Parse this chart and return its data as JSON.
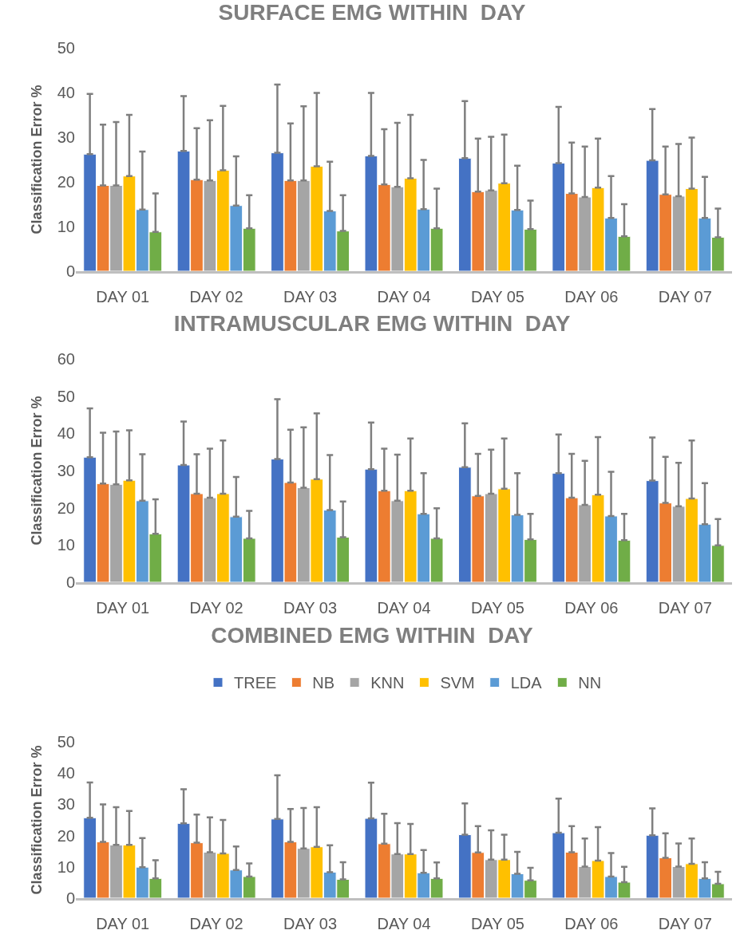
{
  "chart_data": [
    {
      "type": "bar",
      "title": "SURFACE EMG WITHIN  DAY",
      "ylabel": "Classification Error %",
      "categories": [
        "DAY 01",
        "DAY 02",
        "DAY 03",
        "DAY 04",
        "DAY 05",
        "DAY 06",
        "DAY 07"
      ],
      "ylim": [
        0,
        50
      ],
      "yticks": [
        0,
        10,
        20,
        30,
        40,
        50
      ],
      "grid": false,
      "legend": false,
      "series": [
        {
          "color": "#4472c4",
          "values": [
            26.2,
            26.9,
            26.5,
            25.8,
            25.3,
            24.2,
            24.8
          ],
          "errors": [
            [
              26.2,
              39.7
            ],
            [
              26.9,
              39.2
            ],
            [
              26.5,
              41.8
            ],
            [
              25.8,
              39.9
            ],
            [
              25.3,
              38.1
            ],
            [
              24.2,
              36.8
            ],
            [
              24.8,
              36.3
            ]
          ]
        },
        {
          "color": "#ed7d31",
          "values": [
            19.2,
            20.5,
            20.3,
            19.4,
            17.8,
            17.4,
            17.2
          ],
          "errors": [
            [
              19.2,
              32.8
            ],
            [
              20.5,
              32.0
            ],
            [
              20.3,
              33.1
            ],
            [
              19.4,
              31.8
            ],
            [
              17.8,
              29.7
            ],
            [
              17.4,
              28.8
            ],
            [
              17.2,
              27.9
            ]
          ]
        },
        {
          "color": "#a5a5a5",
          "values": [
            19.2,
            20.3,
            20.3,
            18.9,
            18.1,
            16.6,
            16.8
          ],
          "errors": [
            [
              19.2,
              33.4
            ],
            [
              20.3,
              33.8
            ],
            [
              20.3,
              36.9
            ],
            [
              18.9,
              33.2
            ],
            [
              18.1,
              30.1
            ],
            [
              16.6,
              27.9
            ],
            [
              16.8,
              28.5
            ]
          ]
        },
        {
          "color": "#ffc000",
          "values": [
            21.3,
            22.6,
            23.5,
            20.8,
            19.7,
            18.7,
            18.5
          ],
          "errors": [
            [
              21.3,
              35.0
            ],
            [
              22.6,
              37.0
            ],
            [
              23.5,
              39.9
            ],
            [
              20.8,
              35.0
            ],
            [
              19.7,
              30.6
            ],
            [
              18.7,
              29.7
            ],
            [
              18.5,
              29.9
            ]
          ]
        },
        {
          "color": "#5b9bd5",
          "values": [
            13.8,
            14.7,
            13.5,
            13.9,
            13.7,
            11.9,
            11.9
          ],
          "errors": [
            [
              13.8,
              26.8
            ],
            [
              14.7,
              25.7
            ],
            [
              13.5,
              24.5
            ],
            [
              13.9,
              24.9
            ],
            [
              13.7,
              23.6
            ],
            [
              11.9,
              21.3
            ],
            [
              11.9,
              21.1
            ]
          ]
        },
        {
          "color": "#70ad47",
          "values": [
            8.8,
            9.6,
            9.0,
            9.6,
            9.4,
            7.8,
            7.6
          ],
          "errors": [
            [
              8.8,
              17.4
            ],
            [
              9.6,
              17.0
            ],
            [
              9.0,
              17.0
            ],
            [
              9.6,
              18.5
            ],
            [
              9.4,
              15.8
            ],
            [
              7.8,
              15.0
            ],
            [
              7.6,
              14.0
            ]
          ]
        }
      ]
    },
    {
      "type": "bar",
      "title": "INTRAMUSCULAR EMG WITHIN  DAY",
      "ylabel": "Classification Error %",
      "categories": [
        "DAY 01",
        "DAY 02",
        "DAY 03",
        "DAY 04",
        "DAY 05",
        "DAY 06",
        "DAY 07"
      ],
      "ylim": [
        0,
        60
      ],
      "yticks": [
        0,
        10,
        20,
        30,
        40,
        50,
        60
      ],
      "grid": false,
      "legend": false,
      "series": [
        {
          "color": "#4472c4",
          "values": [
            33.6,
            31.5,
            33.1,
            30.4,
            30.9,
            29.3,
            27.3
          ],
          "errors": [
            [
              33.6,
              46.7
            ],
            [
              31.5,
              43.2
            ],
            [
              33.1,
              49.2
            ],
            [
              30.4,
              42.9
            ],
            [
              30.9,
              42.7
            ],
            [
              29.3,
              39.7
            ],
            [
              27.3,
              38.9
            ]
          ]
        },
        {
          "color": "#ed7d31",
          "values": [
            26.5,
            23.8,
            26.8,
            24.6,
            23.2,
            22.7,
            21.3
          ],
          "errors": [
            [
              26.5,
              40.2
            ],
            [
              23.8,
              34.4
            ],
            [
              26.8,
              41.0
            ],
            [
              24.6,
              35.9
            ],
            [
              23.2,
              34.5
            ],
            [
              22.7,
              34.5
            ],
            [
              21.3,
              33.7
            ]
          ]
        },
        {
          "color": "#a5a5a5",
          "values": [
            26.3,
            22.7,
            25.4,
            21.9,
            23.8,
            20.8,
            20.4
          ],
          "errors": [
            [
              26.3,
              40.5
            ],
            [
              22.7,
              35.9
            ],
            [
              25.4,
              41.6
            ],
            [
              21.9,
              34.3
            ],
            [
              23.8,
              35.6
            ],
            [
              20.8,
              32.6
            ],
            [
              20.4,
              32.1
            ]
          ]
        },
        {
          "color": "#ffc000",
          "values": [
            27.4,
            23.8,
            27.7,
            24.6,
            25.1,
            23.5,
            22.5
          ],
          "errors": [
            [
              27.4,
              40.8
            ],
            [
              23.8,
              38.1
            ],
            [
              27.7,
              45.4
            ],
            [
              24.6,
              38.6
            ],
            [
              25.1,
              38.6
            ],
            [
              23.5,
              39.0
            ],
            [
              22.5,
              38.1
            ]
          ]
        },
        {
          "color": "#5b9bd5",
          "values": [
            21.9,
            17.6,
            19.4,
            18.4,
            18.1,
            17.8,
            15.6
          ],
          "errors": [
            [
              21.9,
              34.4
            ],
            [
              17.6,
              28.3
            ],
            [
              19.4,
              34.2
            ],
            [
              18.4,
              29.3
            ],
            [
              18.1,
              29.3
            ],
            [
              17.8,
              29.7
            ],
            [
              15.6,
              26.6
            ]
          ]
        },
        {
          "color": "#70ad47",
          "values": [
            13.0,
            11.8,
            12.1,
            11.8,
            11.5,
            11.3,
            9.9
          ],
          "errors": [
            [
              13.0,
              22.3
            ],
            [
              11.8,
              19.2
            ],
            [
              12.1,
              21.7
            ],
            [
              11.8,
              19.9
            ],
            [
              11.5,
              18.4
            ],
            [
              11.3,
              18.4
            ],
            [
              9.9,
              17.0
            ]
          ]
        }
      ]
    },
    {
      "type": "bar",
      "title": "COMBINED EMG WITHIN  DAY",
      "ylabel": "Classification Error %",
      "categories": [
        "DAY 01",
        "DAY 02",
        "DAY 03",
        "DAY 04",
        "DAY 05",
        "DAY 06",
        "DAY 07"
      ],
      "ylim": [
        0,
        50
      ],
      "yticks": [
        0,
        10,
        20,
        30,
        40,
        50
      ],
      "grid": false,
      "legend": "top",
      "series": [
        {
          "name": "TREE",
          "color": "#4472c4",
          "values": [
            25.7,
            23.9,
            25.3,
            25.5,
            20.3,
            20.9,
            20.1
          ],
          "errors": [
            [
              25.7,
              37.0
            ],
            [
              23.9,
              34.8
            ],
            [
              25.3,
              39.3
            ],
            [
              25.5,
              36.9
            ],
            [
              20.3,
              30.3
            ],
            [
              20.9,
              31.8
            ],
            [
              20.1,
              28.7
            ]
          ]
        },
        {
          "name": "NB",
          "color": "#ed7d31",
          "values": [
            18.0,
            17.7,
            18.0,
            17.4,
            14.6,
            14.7,
            12.9
          ],
          "errors": [
            [
              18.0,
              30.0
            ],
            [
              17.7,
              26.7
            ],
            [
              18.0,
              28.5
            ],
            [
              17.4,
              27.0
            ],
            [
              14.6,
              23.0
            ],
            [
              14.7,
              23.0
            ],
            [
              12.9,
              20.7
            ]
          ]
        },
        {
          "name": "KNN",
          "color": "#a5a5a5",
          "values": [
            17.0,
            14.7,
            15.9,
            14.1,
            12.3,
            10.1,
            10.1
          ],
          "errors": [
            [
              17.0,
              29.1
            ],
            [
              14.7,
              25.8
            ],
            [
              15.9,
              28.8
            ],
            [
              14.1,
              24.0
            ],
            [
              12.3,
              21.7
            ],
            [
              10.1,
              19.1
            ],
            [
              10.1,
              17.5
            ]
          ]
        },
        {
          "name": "SVM",
          "color": "#ffc000",
          "values": [
            17.0,
            14.3,
            16.4,
            14.1,
            12.3,
            12.0,
            11.0
          ],
          "errors": [
            [
              17.0,
              27.9
            ],
            [
              14.3,
              25.0
            ],
            [
              16.4,
              29.1
            ],
            [
              14.1,
              23.7
            ],
            [
              12.3,
              20.3
            ],
            [
              12.0,
              22.7
            ],
            [
              11.0,
              19.1
            ]
          ]
        },
        {
          "name": "LDA",
          "color": "#5b9bd5",
          "values": [
            9.9,
            9.0,
            8.3,
            8.1,
            7.8,
            6.9,
            6.3
          ],
          "errors": [
            [
              9.9,
              19.2
            ],
            [
              9.0,
              16.5
            ],
            [
              8.3,
              16.9
            ],
            [
              8.1,
              15.4
            ],
            [
              7.8,
              14.8
            ],
            [
              6.9,
              14.4
            ],
            [
              6.3,
              11.5
            ]
          ]
        },
        {
          "name": "NN",
          "color": "#70ad47",
          "values": [
            6.3,
            6.9,
            6.0,
            6.3,
            5.7,
            5.1,
            4.6
          ],
          "errors": [
            [
              6.3,
              12.1
            ],
            [
              6.9,
              11.1
            ],
            [
              6.0,
              11.5
            ],
            [
              6.3,
              11.4
            ],
            [
              5.7,
              9.7
            ],
            [
              5.1,
              10.0
            ],
            [
              4.6,
              8.4
            ]
          ]
        }
      ]
    }
  ]
}
